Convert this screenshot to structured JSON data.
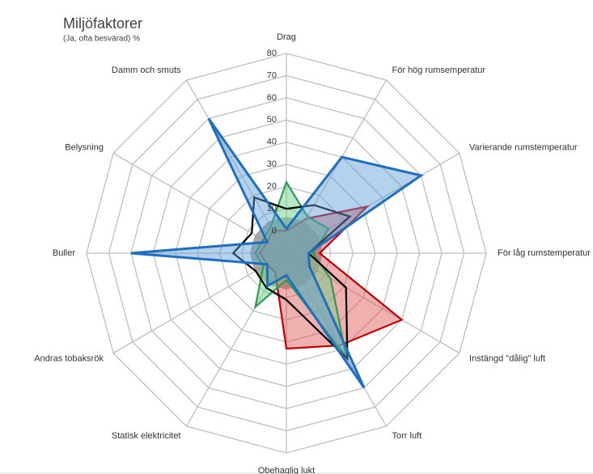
{
  "chart_data": {
    "type": "radar",
    "title": "Miljöfaktorer",
    "subtitle": "(Ja, ofta besvärad) %",
    "categories": [
      "Drag",
      "För hög rumsemperatur",
      "Varierande rumstemperatur",
      "För låg rumstemperatur",
      "Instängd \"dålig\" luft",
      "Torr luft",
      "Obehaglig lukt",
      "Statisk elektricitet",
      "Andras tobaksrök",
      "Buller",
      "Belysning",
      "Damm och smuts"
    ],
    "ylim": [
      -10,
      80
    ],
    "yticks": [
      0,
      10,
      20,
      30,
      40,
      50,
      60,
      70,
      80
    ],
    "grid": true,
    "series": [
      {
        "color": "#a6a6a6",
        "fill": "rgba(140,140,140,0.75)",
        "values": [
          6,
          6,
          6,
          6,
          6,
          6,
          6,
          6,
          6,
          6,
          6,
          6
        ]
      },
      {
        "color": "#c00000",
        "fill": "rgba(224,80,80,0.45)",
        "values": [
          0,
          8,
          32,
          5,
          50,
          38,
          33,
          0,
          0,
          2,
          0,
          2
        ]
      },
      {
        "color": "#2e9b50",
        "fill": "rgba(112,208,138,0.5)",
        "values": [
          22,
          9,
          12,
          2,
          13,
          44,
          2,
          18,
          2,
          4,
          2,
          4
        ]
      },
      {
        "color": "#000000",
        "fill": "none",
        "values": [
          10,
          15,
          23,
          0,
          21,
          45,
          11,
          8,
          6,
          14,
          8,
          19
        ]
      },
      {
        "color": "#1f6fc0",
        "fill": "rgba(91,155,213,0.45)",
        "values": [
          1,
          40,
          60,
          0,
          2,
          60,
          0,
          7,
          0,
          60,
          0,
          60
        ]
      }
    ]
  }
}
